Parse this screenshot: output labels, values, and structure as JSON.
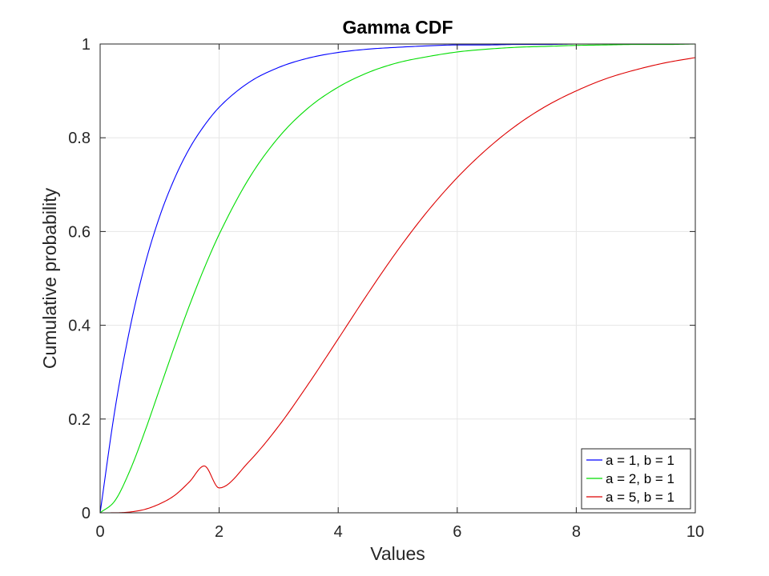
{
  "chart_data": {
    "type": "line",
    "title": "Gamma CDF",
    "xlabel": "Values",
    "ylabel": "Cumulative probability",
    "xlim": [
      0,
      10
    ],
    "ylim": [
      0,
      1
    ],
    "xticks": [
      0,
      2,
      4,
      6,
      8,
      10
    ],
    "xtick_labels": [
      "0",
      "2",
      "4",
      "6",
      "8",
      "10"
    ],
    "yticks": [
      0,
      0.2,
      0.4,
      0.6,
      0.8,
      1
    ],
    "ytick_labels": [
      "0",
      "0.2",
      "0.4",
      "0.6",
      "0.8",
      "1"
    ],
    "grid": true,
    "legend_position": "bottom-right",
    "x": [
      0,
      0.25,
      0.5,
      0.75,
      1,
      1.25,
      1.5,
      1.75,
      2,
      2.5,
      3,
      3.5,
      4,
      4.5,
      5,
      5.5,
      6,
      6.5,
      7,
      7.5,
      8,
      8.5,
      9,
      9.5,
      10
    ],
    "series": [
      {
        "name": "a = 1, b = 1",
        "color": "#0000ff",
        "values": [
          0,
          0.221,
          0.393,
          0.528,
          0.632,
          0.713,
          0.777,
          0.826,
          0.865,
          0.918,
          0.95,
          0.97,
          0.982,
          0.989,
          0.993,
          0.996,
          0.998,
          0.998,
          0.999,
          0.999,
          1.0,
          1.0,
          1.0,
          1.0,
          1.0
        ]
      },
      {
        "name": "a = 2, b = 1",
        "color": "#00dd00",
        "values": [
          0,
          0.026,
          0.09,
          0.173,
          0.264,
          0.355,
          0.442,
          0.522,
          0.594,
          0.713,
          0.801,
          0.864,
          0.908,
          0.939,
          0.96,
          0.973,
          0.983,
          0.989,
          0.993,
          0.995,
          0.997,
          0.998,
          0.999,
          0.999,
          1.0
        ]
      },
      {
        "name": "a = 5, b = 1",
        "color": "#dd0000",
        "values": [
          0,
          7e-05,
          0.0017,
          0.0073,
          0.019,
          0.037,
          0.066,
          0.1,
          0.053,
          0.109,
          0.185,
          0.275,
          0.371,
          0.468,
          0.56,
          0.643,
          0.715,
          0.776,
          0.827,
          0.868,
          0.9,
          0.926,
          0.945,
          0.96,
          0.971
        ]
      }
    ]
  }
}
